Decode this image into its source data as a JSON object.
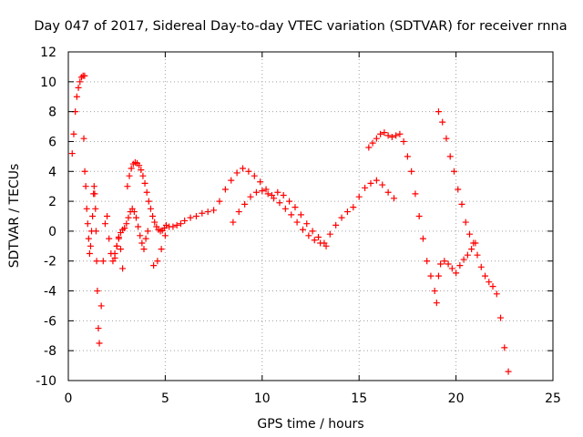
{
  "chart_data": {
    "type": "scatter",
    "title": "Day 047 of 2017, Sidereal Day-to-day VTEC variation (SDTVAR) for receiver rnna",
    "xlabel": "GPS time / hours",
    "ylabel": "SDTVAR / TECUs",
    "xlim": [
      0,
      25
    ],
    "ylim": [
      -10,
      12
    ],
    "xticks": [
      "0",
      "5",
      "10",
      "15",
      "20",
      "25"
    ],
    "yticks": [
      "-10",
      "-8",
      "-6",
      "-4",
      "-2",
      "0",
      "2",
      "4",
      "6",
      "8",
      "10",
      "12"
    ],
    "grid": true,
    "marker": "plus",
    "color": "#ff0000",
    "series": [
      {
        "x": [
          0.2,
          0.28,
          0.36,
          0.44,
          0.52,
          0.6,
          0.68,
          0.76,
          0.84,
          0.8,
          0.85,
          0.9,
          0.95,
          1.0,
          1.05,
          1.1,
          1.15,
          1.2,
          1.25,
          1.3,
          1.33,
          1.36,
          1.4,
          1.43,
          1.46,
          1.5,
          1.55,
          1.6,
          1.7,
          1.8,
          1.9,
          2.0,
          2.1,
          2.2,
          2.3,
          2.4,
          2.5,
          2.6,
          2.7,
          2.8
        ],
        "y": [
          5.2,
          6.5,
          8.0,
          9.0,
          9.6,
          10.0,
          10.3,
          10.4,
          10.4,
          6.2,
          4.0,
          3.0,
          1.5,
          0.5,
          -0.5,
          -1.5,
          -1.0,
          0.0,
          1.0,
          2.5,
          3.0,
          2.5,
          1.5,
          0.0,
          -2.0,
          -4.0,
          -6.5,
          -7.5,
          -5.0,
          -2.0,
          0.5,
          1.0,
          -0.5,
          -1.5,
          -2.0,
          -1.5,
          -1.0,
          -0.5,
          -1.2,
          -2.5
        ]
      },
      {
        "x": [
          2.4,
          2.5,
          2.6,
          2.7,
          2.8,
          2.9,
          3.0,
          3.1,
          3.2,
          3.3,
          3.4,
          3.5,
          3.6,
          3.7,
          3.8,
          3.9,
          4.0,
          4.1
        ],
        "y": [
          -1.8,
          -1.0,
          -0.4,
          -0.1,
          0.1,
          0.2,
          0.5,
          0.9,
          1.3,
          1.5,
          1.3,
          0.9,
          0.3,
          -0.3,
          -0.8,
          -1.2,
          -0.5,
          0.0
        ]
      },
      {
        "x": [
          3.05,
          3.15,
          3.25,
          3.35,
          3.45,
          3.55,
          3.65,
          3.75,
          3.85,
          3.95,
          4.05,
          4.15,
          4.25,
          4.35,
          4.45,
          4.55,
          4.65,
          4.75,
          4.85,
          4.95,
          5.05
        ],
        "y": [
          3.0,
          3.7,
          4.2,
          4.5,
          4.6,
          4.55,
          4.4,
          4.1,
          3.7,
          3.2,
          2.6,
          2.0,
          1.5,
          1.0,
          0.6,
          0.3,
          0.1,
          0.0,
          0.05,
          0.2,
          0.4
        ]
      },
      {
        "x": [
          4.4,
          4.6,
          4.8,
          5.0,
          5.2,
          5.4,
          5.6,
          5.8,
          6.0,
          6.3,
          6.6,
          6.9,
          7.2,
          7.5,
          7.8,
          8.1,
          8.4,
          8.7,
          9.0,
          9.3,
          9.6,
          9.9,
          10.2,
          10.5,
          10.8,
          11.1,
          11.4,
          11.7,
          12.0,
          12.3,
          12.6,
          12.9,
          13.2,
          13.5,
          13.8,
          14.1,
          14.4,
          14.7,
          15.0,
          15.3,
          15.6,
          15.9,
          16.2,
          16.5,
          16.8
        ],
        "y": [
          -2.3,
          -2.0,
          -1.2,
          -0.3,
          0.3,
          0.3,
          0.4,
          0.5,
          0.7,
          0.9,
          1.0,
          1.2,
          1.3,
          1.4,
          2.0,
          2.8,
          3.4,
          3.9,
          4.2,
          4.0,
          3.7,
          3.3,
          2.8,
          2.4,
          2.6,
          2.4,
          2.0,
          1.6,
          1.1,
          0.5,
          0.0,
          -0.4,
          -0.8,
          -0.2,
          0.4,
          0.9,
          1.3,
          1.6,
          2.3,
          2.9,
          3.2,
          3.4,
          3.1,
          2.6,
          2.2
        ]
      },
      {
        "x": [
          8.5,
          8.8,
          9.1,
          9.4,
          9.7,
          10.0,
          10.3,
          10.6,
          10.9,
          11.2,
          11.5,
          11.8,
          12.1,
          12.4,
          12.7,
          13.0,
          13.3
        ],
        "y": [
          0.6,
          1.3,
          1.8,
          2.3,
          2.6,
          2.7,
          2.5,
          2.2,
          1.9,
          1.5,
          1.1,
          0.6,
          0.1,
          -0.3,
          -0.6,
          -0.8,
          -1.0
        ]
      },
      {
        "x": [
          15.5,
          15.7,
          15.9,
          16.1,
          16.3,
          16.5,
          16.7,
          16.9,
          17.1,
          17.3,
          17.5,
          17.7,
          17.9,
          18.1,
          18.3,
          18.5,
          18.7,
          18.9,
          19.0,
          19.1,
          19.2,
          19.4,
          19.6,
          19.8,
          20.0,
          20.2,
          20.4,
          20.6,
          20.8,
          21.0
        ],
        "y": [
          5.6,
          5.9,
          6.2,
          6.5,
          6.6,
          6.4,
          6.3,
          6.4,
          6.5,
          6.0,
          5.0,
          4.0,
          2.5,
          1.0,
          -0.5,
          -2.0,
          -3.0,
          -4.0,
          -4.8,
          -3.0,
          -2.2,
          -2.0,
          -2.2,
          -2.5,
          -2.8,
          -2.3,
          -1.9,
          -1.6,
          -1.2,
          -0.8
        ]
      },
      {
        "x": [
          19.1,
          19.3,
          19.5,
          19.7,
          19.9,
          20.1,
          20.3,
          20.5,
          20.7,
          20.9,
          21.1,
          21.3,
          21.5,
          21.7,
          21.9,
          22.1,
          22.3,
          22.5,
          22.7
        ],
        "y": [
          8.0,
          7.3,
          6.2,
          5.0,
          4.0,
          2.8,
          1.8,
          0.6,
          -0.2,
          -0.8,
          -1.6,
          -2.4,
          -3.0,
          -3.4,
          -3.7,
          -4.2,
          -5.8,
          -7.8,
          -9.4
        ]
      }
    ]
  }
}
